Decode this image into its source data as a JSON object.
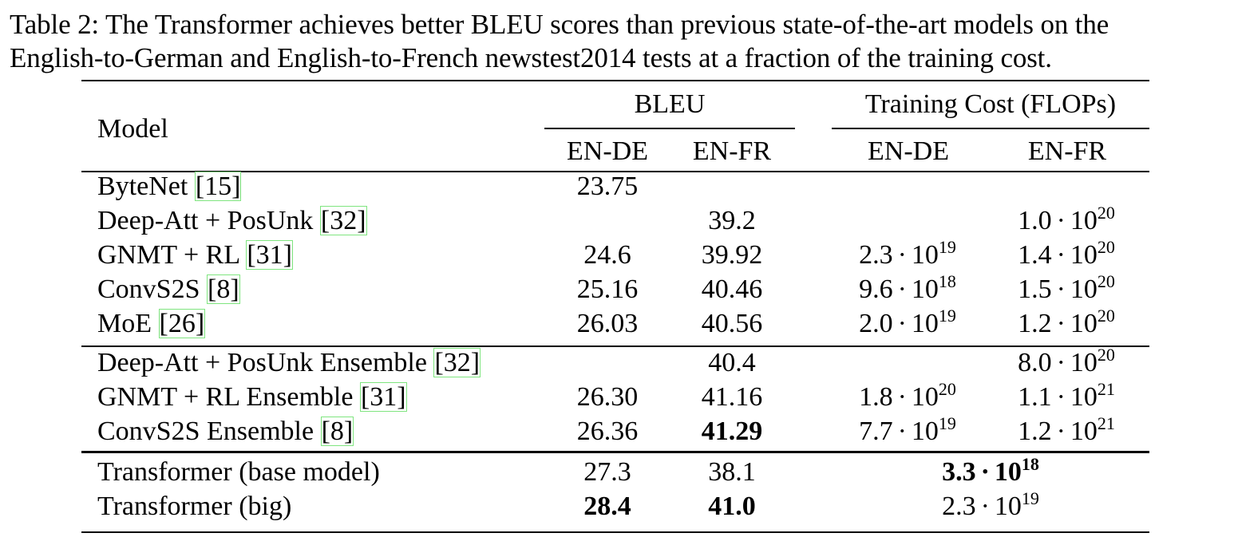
{
  "caption": {
    "line1": "Table 2: The Transformer achieves better BLEU scores than previous state-of-the-art models on the",
    "line2": "English-to-German and English-to-French newstest2014 tests at a fraction of the training cost."
  },
  "header": {
    "model": "Model",
    "bleu": "BLEU",
    "cost": "Training Cost (FLOPs)",
    "en_de": "EN-DE",
    "en_fr": "EN-FR"
  },
  "groups": [
    [
      {
        "name": "ByteNet ",
        "ref": "[15]",
        "bleu_de": "23.75",
        "bleu_fr": "",
        "cost_de": null,
        "cost_fr": null
      },
      {
        "name": "Deep-Att + PosUnk ",
        "ref": "[32]",
        "bleu_de": "",
        "bleu_fr": "39.2",
        "cost_de": null,
        "cost_fr": {
          "m": "1.0",
          "base": "10",
          "exp": "20"
        }
      },
      {
        "name": "GNMT + RL ",
        "ref": "[31]",
        "bleu_de": "24.6",
        "bleu_fr": "39.92",
        "cost_de": {
          "m": "2.3",
          "base": "10",
          "exp": "19"
        },
        "cost_fr": {
          "m": "1.4",
          "base": "10",
          "exp": "20"
        }
      },
      {
        "name": "ConvS2S ",
        "ref": "[8]",
        "bleu_de": "25.16",
        "bleu_fr": "40.46",
        "cost_de": {
          "m": "9.6",
          "base": "10",
          "exp": "18"
        },
        "cost_fr": {
          "m": "1.5",
          "base": "10",
          "exp": "20"
        }
      },
      {
        "name": "MoE ",
        "ref": "[26]",
        "bleu_de": "26.03",
        "bleu_fr": "40.56",
        "cost_de": {
          "m": "2.0",
          "base": "10",
          "exp": "19"
        },
        "cost_fr": {
          "m": "1.2",
          "base": "10",
          "exp": "20"
        }
      }
    ],
    [
      {
        "name": "Deep-Att + PosUnk Ensemble ",
        "ref": "[32]",
        "bleu_de": "",
        "bleu_fr": "40.4",
        "cost_de": null,
        "cost_fr": {
          "m": "8.0",
          "base": "10",
          "exp": "20"
        }
      },
      {
        "name": "GNMT + RL Ensemble ",
        "ref": "[31]",
        "bleu_de": "26.30",
        "bleu_fr": "41.16",
        "cost_de": {
          "m": "1.8",
          "base": "10",
          "exp": "20"
        },
        "cost_fr": {
          "m": "1.1",
          "base": "10",
          "exp": "21"
        }
      },
      {
        "name": "ConvS2S Ensemble ",
        "ref": "[8]",
        "bleu_de": "26.36",
        "bleu_fr": "41.29",
        "bleu_fr_bold": true,
        "cost_de": {
          "m": "7.7",
          "base": "10",
          "exp": "19"
        },
        "cost_fr": {
          "m": "1.2",
          "base": "10",
          "exp": "21"
        }
      }
    ],
    [
      {
        "name": "Transformer (base model)",
        "ref": "",
        "bleu_de": "27.3",
        "bleu_fr": "38.1",
        "cost_span": {
          "m": "3.3",
          "base": "10",
          "exp": "18",
          "bold": true
        }
      },
      {
        "name": "Transformer (big)",
        "ref": "",
        "bleu_de": "28.4",
        "bleu_de_bold": true,
        "bleu_fr": "41.0",
        "bleu_fr_bold": true,
        "cost_span": {
          "m": "2.3",
          "base": "10",
          "exp": "19",
          "bold": false
        }
      }
    ]
  ]
}
